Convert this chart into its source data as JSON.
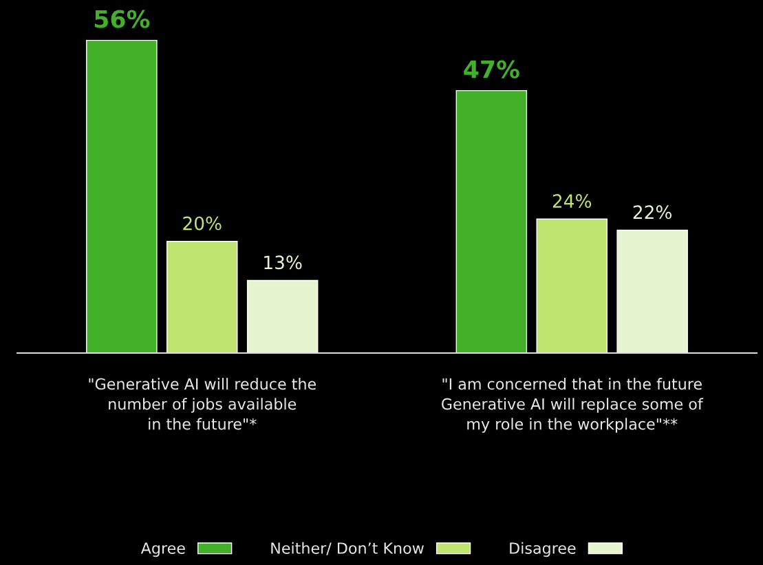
{
  "chart_data": {
    "type": "bar",
    "categories": [
      "\"Generative AI will reduce the\nnumber of jobs available\nin the future\"*",
      "\"I am concerned that in the future\nGenerative AI will replace some of\nmy role in the workplace\"**"
    ],
    "series": [
      {
        "name": "Agree",
        "color": "#43b02a",
        "values": [
          56,
          47
        ],
        "value_labels": [
          "56%",
          "47%"
        ]
      },
      {
        "name": "Neither/ Don’t Know",
        "color": "#c0e470",
        "values": [
          20,
          24
        ],
        "value_labels": [
          "20%",
          "24%"
        ]
      },
      {
        "name": "Disagree",
        "color": "#e6f5cf",
        "values": [
          13,
          22
        ],
        "value_labels": [
          "13%",
          "22%"
        ]
      }
    ],
    "legend": "bottom",
    "grid": false
  }
}
